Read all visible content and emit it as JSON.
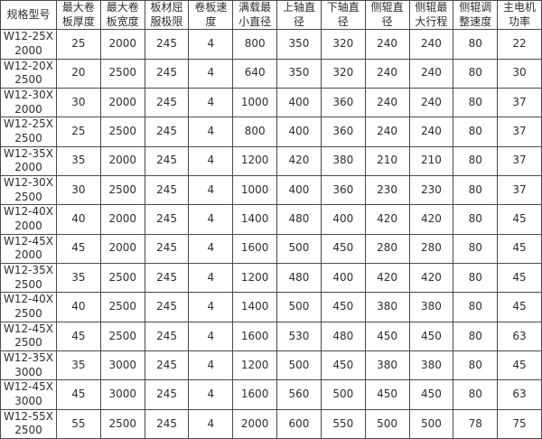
{
  "table": {
    "columns": [
      "规格型号",
      "最大卷板厚度",
      "最大卷板宽度",
      "板材屈服极限",
      "卷板速度",
      "满载最小直径",
      "上轴直径",
      "下轴直径",
      "侧辊直径",
      "侧辊最大行程",
      "侧辊调整速度",
      "主电机功率"
    ],
    "rows": [
      [
        "W12-25X2000",
        "25",
        "2000",
        "245",
        "4",
        "800",
        "350",
        "320",
        "240",
        "240",
        "80",
        "22"
      ],
      [
        "W12-20X2500",
        "20",
        "2500",
        "245",
        "4",
        "640",
        "350",
        "320",
        "240",
        "240",
        "80",
        "30"
      ],
      [
        "W12-30X2000",
        "30",
        "2000",
        "245",
        "4",
        "1000",
        "400",
        "360",
        "240",
        "240",
        "80",
        "37"
      ],
      [
        "W12-25X2500",
        "25",
        "2500",
        "245",
        "4",
        "800",
        "400",
        "360",
        "240",
        "240",
        "80",
        "37"
      ],
      [
        "W12-35X2000",
        "35",
        "2000",
        "245",
        "4",
        "1200",
        "420",
        "380",
        "210",
        "210",
        "80",
        "37"
      ],
      [
        "W12-30X2500",
        "30",
        "2500",
        "245",
        "4",
        "1000",
        "400",
        "360",
        "230",
        "230",
        "80",
        "37"
      ],
      [
        "W12-40X2000",
        "40",
        "2000",
        "245",
        "4",
        "1400",
        "480",
        "400",
        "420",
        "420",
        "80",
        "45"
      ],
      [
        "W12-45X2000",
        "45",
        "2000",
        "245",
        "4",
        "1600",
        "500",
        "450",
        "280",
        "280",
        "80",
        "45"
      ],
      [
        "W12-35X2500",
        "35",
        "2500",
        "245",
        "4",
        "1200",
        "480",
        "400",
        "420",
        "420",
        "80",
        "45"
      ],
      [
        "W12-40X2500",
        "40",
        "2500",
        "245",
        "4",
        "1400",
        "500",
        "450",
        "380",
        "380",
        "80",
        "45"
      ],
      [
        "W12-45X2500",
        "45",
        "2500",
        "245",
        "4",
        "1600",
        "530",
        "480",
        "450",
        "450",
        "80",
        "63"
      ],
      [
        "W12-35X3000",
        "35",
        "3000",
        "245",
        "4",
        "1200",
        "500",
        "450",
        "380",
        "380",
        "80",
        "45"
      ],
      [
        "W12-45X3000",
        "45",
        "3000",
        "245",
        "4",
        "1600",
        "560",
        "500",
        "450",
        "450",
        "80",
        "63"
      ],
      [
        "W12-55X2500",
        "55",
        "2500",
        "245",
        "4",
        "2000",
        "600",
        "550",
        "500",
        "500",
        "78",
        "75"
      ]
    ]
  },
  "colors": {
    "border": "#4a4a4a",
    "text": "#2e2e2e",
    "background": "#ffffff"
  }
}
